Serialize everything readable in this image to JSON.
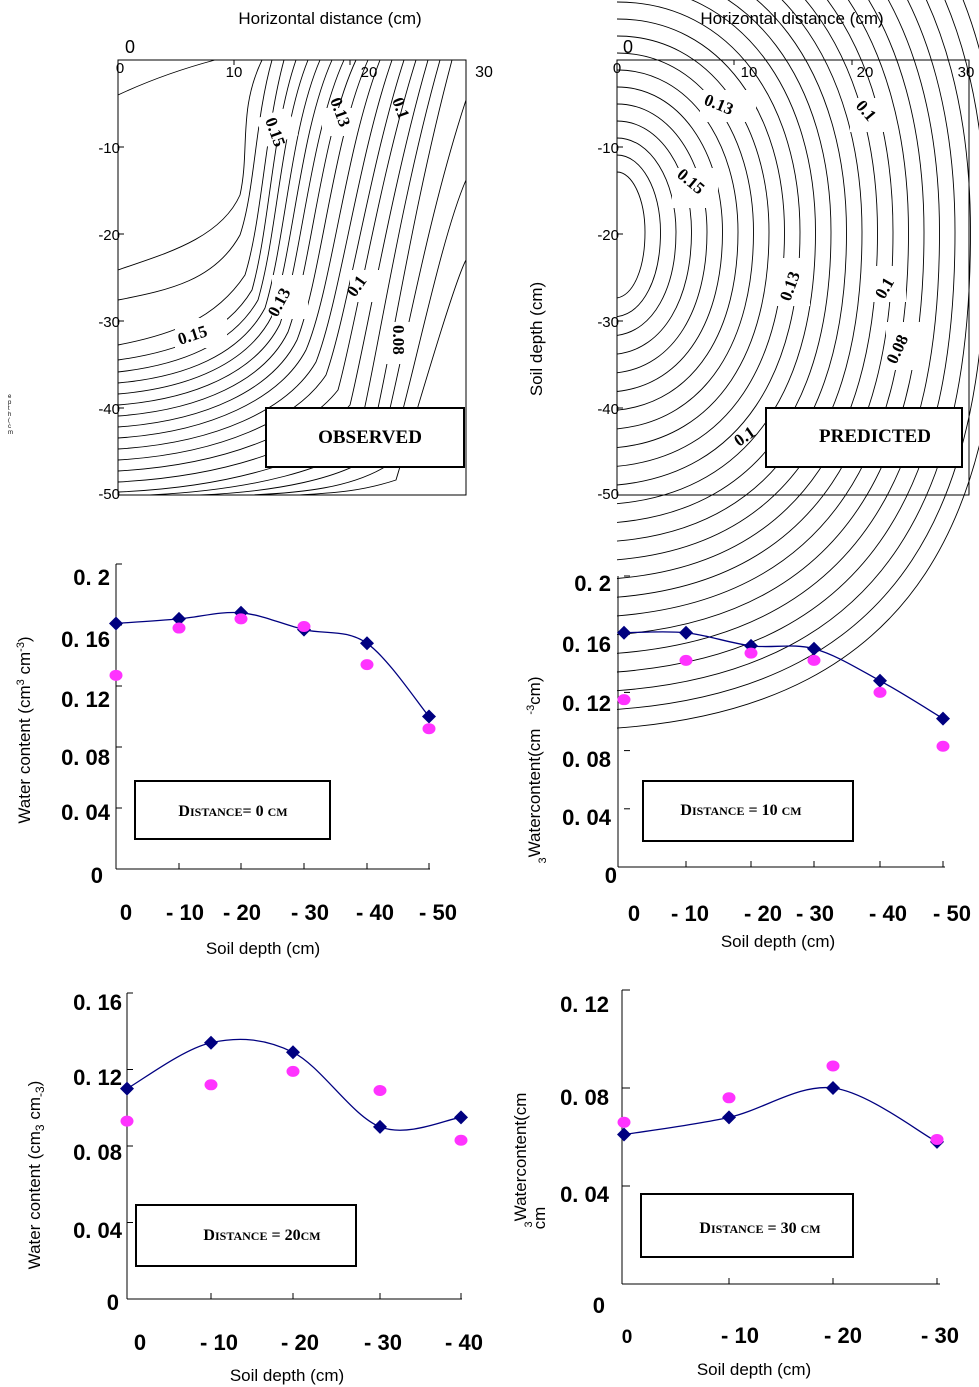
{
  "contour_panels": [
    {
      "box_label": "OBSERVED",
      "x_title": "Horizontal distance (cm)",
      "y_title": "",
      "x_ticks": [
        "0",
        "0",
        "10",
        "20",
        "30"
      ],
      "y_ticks": [
        "-10",
        "-20",
        "-30",
        "-40",
        "-50"
      ],
      "contour_labels": [
        "0.15",
        "0.13",
        "0.1",
        "0.15",
        "0.13",
        "0.1",
        "0.08"
      ],
      "stray_text": [
        "e",
        "p",
        "t",
        "h",
        "(",
        "c",
        "m"
      ]
    },
    {
      "box_label": "PREDICTED",
      "x_title": "Horizontal distance (cm)",
      "y_title": "Soil depth (cm)",
      "x_ticks": [
        "0",
        "0",
        "10",
        "20",
        "30"
      ],
      "y_ticks": [
        "-10",
        "-20",
        "-30",
        "-40",
        "-50"
      ],
      "contour_labels": [
        "0.13",
        "0.1",
        "0.15",
        "0.13",
        "0.1",
        "0.08",
        "0.1"
      ]
    }
  ],
  "chart_data": [
    {
      "type": "line",
      "title": "",
      "box_label": [
        "D",
        "ISTANCE",
        "= 0 ",
        "CM"
      ],
      "xlabel": "Soil depth (cm)",
      "ylabel": [
        "Water content (cm",
        "3",
        " cm",
        "-3",
        ")"
      ],
      "x": [
        0,
        -10,
        -20,
        -30,
        -40,
        -50
      ],
      "x_tick_labels": [
        "0",
        "- 10",
        "- 20",
        "- 30",
        "- 40",
        "- 50"
      ],
      "y_tick_labels": [
        "0",
        "0. 04",
        "0. 08",
        "0. 12",
        "0. 16",
        "0. 2"
      ],
      "ylim": [
        0,
        0.2
      ],
      "series": [
        {
          "marker": "diamond",
          "color": "#000080",
          "values": [
            0.161,
            0.164,
            0.168,
            0.157,
            0.148,
            0.1
          ]
        },
        {
          "marker": "circle",
          "color": "#ff33ff",
          "values": [
            0.127,
            0.158,
            0.164,
            0.159,
            0.134,
            0.092
          ]
        }
      ]
    },
    {
      "type": "line",
      "title": "",
      "box_label": [
        "D",
        "ISTANCE",
        " = 10 ",
        "CM"
      ],
      "xlabel": "Soil depth (cm)",
      "ylabel": [
        "3",
        "Watercontent(cm",
        "-3",
        "cm)"
      ],
      "x": [
        0,
        -10,
        -20,
        -30,
        -40,
        -50
      ],
      "x_tick_labels": [
        "0",
        "- 10",
        "- 20",
        "- 30",
        "- 40",
        "- 50"
      ],
      "y_tick_labels": [
        "0",
        "0. 04",
        "0. 08",
        "0. 12",
        "0. 16",
        "0. 2"
      ],
      "ylim": [
        0,
        0.2
      ],
      "series": [
        {
          "marker": "diamond",
          "color": "#000080",
          "values": [
            0.161,
            0.161,
            0.152,
            0.15,
            0.128,
            0.102
          ]
        },
        {
          "marker": "circle",
          "color": "#ff33ff",
          "values": [
            0.115,
            0.142,
            0.147,
            0.142,
            0.12,
            0.083
          ]
        }
      ]
    },
    {
      "type": "line",
      "title": "",
      "box_label": [
        "D",
        "ISTANCE",
        " = 20",
        "CM"
      ],
      "xlabel": "Soil depth (cm)",
      "ylabel": [
        "Water content (cm",
        "3",
        " cm",
        "-3",
        ")"
      ],
      "x": [
        0,
        -10,
        -20,
        -30,
        -40
      ],
      "x_tick_labels": [
        "0",
        "- 10",
        "- 20",
        "- 30",
        "- 40"
      ],
      "y_tick_labels": [
        "0",
        "0. 04",
        "0. 08",
        "0. 12",
        "0. 16"
      ],
      "ylim": [
        0,
        0.16
      ],
      "series": [
        {
          "marker": "diamond",
          "color": "#000080",
          "values": [
            0.11,
            0.134,
            0.129,
            0.09,
            0.095
          ]
        },
        {
          "marker": "circle",
          "color": "#ff33ff",
          "values": [
            0.093,
            0.112,
            0.119,
            0.109,
            0.083
          ]
        }
      ]
    },
    {
      "type": "line",
      "title": "",
      "box_label": [
        "D",
        "ISTANCE",
        " = 30 ",
        "CM"
      ],
      "xlabel": "Soil depth (cm)",
      "ylabel": [
        "3",
        "Watercontent(cm",
        "cm"
      ],
      "x": [
        0,
        -10,
        -20,
        -30
      ],
      "x_tick_labels": [
        "0",
        "- 10",
        "- 20",
        "- 30"
      ],
      "y_tick_labels": [
        "0",
        "0. 04",
        "0. 08",
        "0. 12"
      ],
      "ylim": [
        0,
        0.12
      ],
      "series": [
        {
          "marker": "diamond",
          "color": "#000080",
          "values": [
            0.061,
            0.068,
            0.08,
            0.058
          ]
        },
        {
          "marker": "circle",
          "color": "#ff33ff",
          "values": [
            0.066,
            0.076,
            0.089,
            0.059
          ]
        }
      ]
    }
  ]
}
